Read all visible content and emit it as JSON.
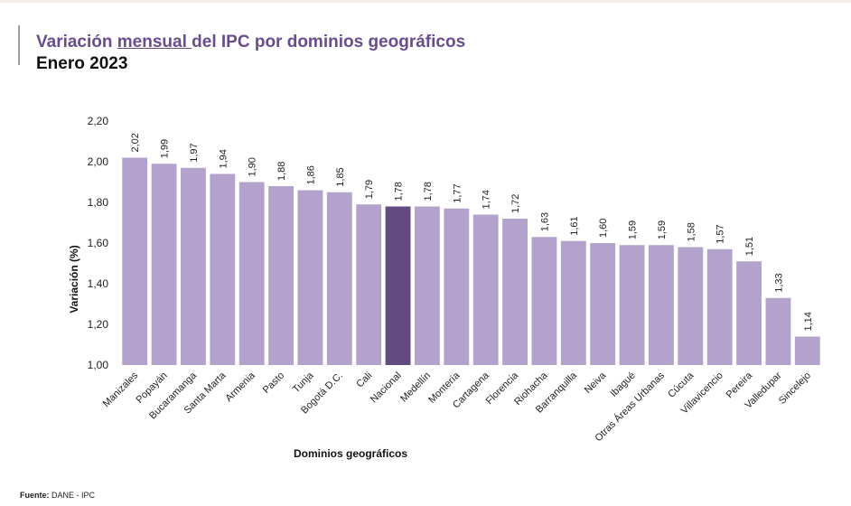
{
  "header": {
    "title_before": "Variación ",
    "title_underlined": "mensual ",
    "title_after": "del IPC por dominios geográficos",
    "subtitle": "Enero 2023"
  },
  "footer": {
    "label": "Fuente:",
    "text": "DANE - IPC"
  },
  "colors": {
    "bar": "#b3a2cb",
    "highlight": "#634a80",
    "title": "#6a4c8e"
  },
  "chart_data": {
    "type": "bar",
    "title": "Variación mensual del IPC por dominios geográficos",
    "subtitle": "Enero 2023",
    "xlabel": "Dominios geográficos",
    "ylabel": "Variación (%)",
    "ylim": [
      1.0,
      2.2
    ],
    "yticks": [
      "1,00",
      "1,20",
      "1,40",
      "1,60",
      "1,80",
      "2,00",
      "2,20"
    ],
    "grid": false,
    "highlight_category": "Nacional",
    "categories": [
      "Manizales",
      "Popayán",
      "Bucaramanga",
      "Santa Marta",
      "Armenia",
      "Pasto",
      "Tunja",
      "Bogotá D.C.",
      "Cali",
      "Nacional",
      "Medellín",
      "Montería",
      "Cartagena",
      "Florencia",
      "Riohacha",
      "Barranquilla",
      "Neiva",
      "Ibagué",
      "Otras Áreas Urbanas",
      "Cúcuta",
      "Villavicencio",
      "Pereira",
      "Valledupar",
      "Sincelejo"
    ],
    "values": [
      2.02,
      1.99,
      1.97,
      1.94,
      1.9,
      1.88,
      1.86,
      1.85,
      1.79,
      1.78,
      1.78,
      1.77,
      1.74,
      1.72,
      1.63,
      1.61,
      1.6,
      1.59,
      1.59,
      1.58,
      1.57,
      1.51,
      1.33,
      1.14
    ],
    "value_labels": [
      "2,02",
      "1,99",
      "1,97",
      "1,94",
      "1,90",
      "1,88",
      "1,86",
      "1,85",
      "1,79",
      "1,78",
      "1,78",
      "1,77",
      "1,74",
      "1,72",
      "1,63",
      "1,61",
      "1,60",
      "1,59",
      "1,59",
      "1,58",
      "1,57",
      "1,51",
      "1,33",
      "1,14"
    ]
  }
}
